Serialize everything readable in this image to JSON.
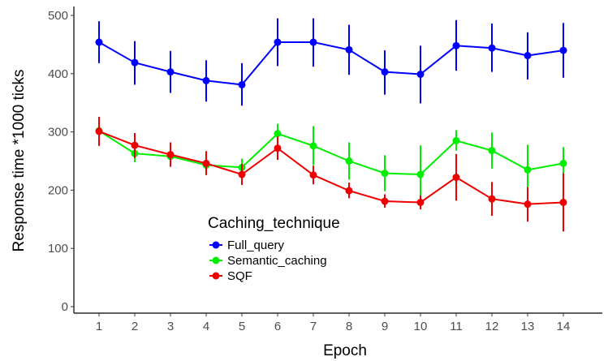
{
  "chart_data": {
    "type": "line",
    "xlabel": "Epoch",
    "ylabel": "Response time *1000 ticks",
    "x": [
      1,
      2,
      3,
      4,
      5,
      6,
      7,
      8,
      9,
      10,
      11,
      12,
      13,
      14
    ],
    "x_tick_labels": [
      "1",
      "2",
      "3",
      "4",
      "5",
      "6",
      "7",
      "8",
      "9",
      "10",
      "11",
      "12",
      "13",
      "14"
    ],
    "y_ticks": [
      0,
      100,
      200,
      300,
      400,
      500
    ],
    "y_tick_labels": [
      "0",
      "100",
      "200",
      "300",
      "400",
      "500"
    ],
    "xlim": [
      0.5,
      14.5
    ],
    "ylim": [
      -10,
      520
    ],
    "grid": false,
    "legend": {
      "title": "Caching_technique",
      "position": "center-left"
    },
    "series": [
      {
        "name": "Full_query",
        "color": "#0000ff",
        "values": [
          454,
          419,
          403,
          388,
          381,
          454,
          454,
          441,
          403,
          399,
          448,
          444,
          431,
          440
        ],
        "error_low": [
          418,
          381,
          367,
          352,
          345,
          413,
          412,
          398,
          364,
          349,
          405,
          403,
          390,
          393
        ],
        "error_high": [
          490,
          456,
          439,
          423,
          418,
          495,
          495,
          484,
          440,
          448,
          492,
          486,
          471,
          487
        ]
      },
      {
        "name": "Semantic_caching",
        "color": "#00ee00",
        "values": [
          302,
          263,
          258,
          243,
          239,
          297,
          276,
          250,
          229,
          227,
          285,
          268,
          235,
          246
        ],
        "error_low": [
          288,
          248,
          244,
          226,
          224,
          280,
          243,
          218,
          198,
          177,
          268,
          237,
          192,
          218
        ],
        "error_high": [
          316,
          279,
          273,
          261,
          254,
          314,
          310,
          282,
          260,
          277,
          303,
          299,
          278,
          274
        ]
      },
      {
        "name": "SQF",
        "color": "#ee0000",
        "values": [
          301,
          277,
          261,
          246,
          227,
          272,
          226,
          199,
          181,
          179,
          222,
          185,
          176,
          179
        ],
        "error_low": [
          276,
          255,
          240,
          226,
          209,
          252,
          210,
          186,
          170,
          167,
          182,
          156,
          146,
          129
        ],
        "error_high": [
          326,
          298,
          282,
          267,
          245,
          292,
          242,
          213,
          193,
          191,
          262,
          214,
          205,
          229
        ]
      }
    ]
  }
}
